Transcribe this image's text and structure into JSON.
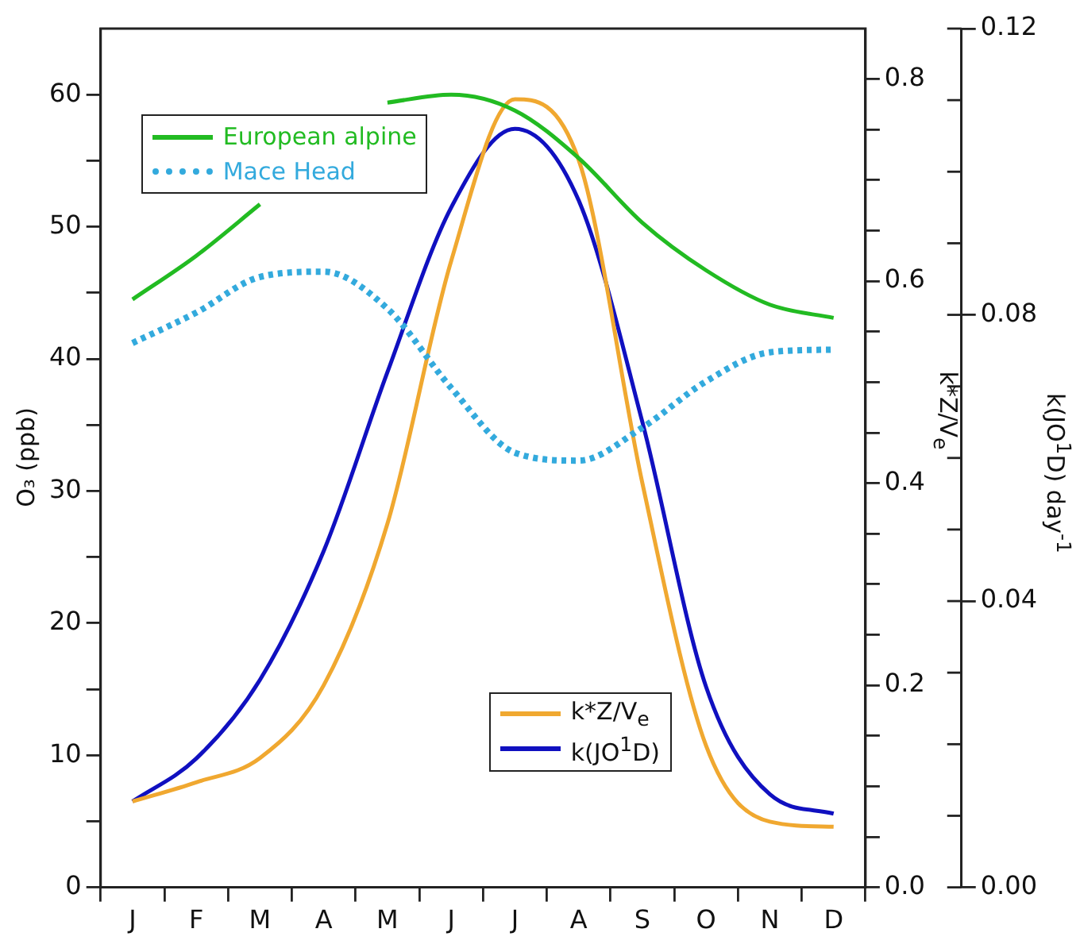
{
  "chart_data": {
    "type": "line",
    "ylabel": "O₃ (ppb)",
    "y2label": "k*Z/V$_{e}$",
    "y3label": "k(JO$^{1}$D) day$^{-1}$",
    "categories": [
      "J",
      "F",
      "M",
      "A",
      "M",
      "J",
      "J",
      "A",
      "S",
      "O",
      "N",
      "D"
    ],
    "ylim": [
      0,
      65
    ],
    "yticks": [
      0,
      {
        "value": 5,
        "label": null
      },
      10,
      {
        "value": 15,
        "label": null
      },
      20,
      {
        "value": 25,
        "label": null
      },
      30,
      {
        "value": 35,
        "label": null
      },
      40,
      {
        "value": 45,
        "label": null
      },
      50,
      {
        "value": 55,
        "label": null
      },
      60
    ],
    "y2lim": [
      0,
      0.85
    ],
    "y2ticks": [
      {
        "value": 0,
        "label": "0.0"
      },
      {
        "value": 0.05,
        "label": null
      },
      {
        "value": 0.1,
        "label": null
      },
      {
        "value": 0.15,
        "label": null
      },
      {
        "value": 0.2,
        "label": "0.2"
      },
      {
        "value": 0.25,
        "label": null
      },
      {
        "value": 0.3,
        "label": null
      },
      {
        "value": 0.35,
        "label": null
      },
      {
        "value": 0.4,
        "label": "0.4"
      },
      {
        "value": 0.45,
        "label": null
      },
      {
        "value": 0.5,
        "label": null
      },
      {
        "value": 0.55,
        "label": null
      },
      {
        "value": 0.6,
        "label": "0.6"
      },
      {
        "value": 0.65,
        "label": null
      },
      {
        "value": 0.7,
        "label": null
      },
      {
        "value": 0.75,
        "label": null
      },
      {
        "value": 0.8,
        "label": "0.8"
      }
    ],
    "y3lim": [
      0,
      0.12
    ],
    "y3ticks": [
      {
        "value": 0,
        "label": "0.00"
      },
      {
        "value": 0.04,
        "label": "0.04"
      },
      {
        "value": 0.08,
        "label": "0.08"
      },
      {
        "value": 0.12,
        "label": "0.12"
      }
    ],
    "legend": "top left",
    "marker": "none",
    "series": [
      {
        "name": "European alpine",
        "color": "#22bb22",
        "values": [
          44.5,
          47.8,
          51.7,
          null,
          59.4,
          60,
          58.8,
          55.2,
          50.3,
          46.7,
          44.1,
          43.1
        ]
      },
      {
        "name": "Mace Head",
        "color": "#33aadd",
        "line_style": "dotted",
        "values": [
          41.2,
          43.5,
          46.2,
          46.6,
          43.8,
          37.8,
          32.9,
          32.3,
          34.8,
          38.3,
          40.5,
          40.7
        ]
      },
      {
        "name": "k*Z/V$_{e}$",
        "color": "#f0a830",
        "axis": "y2",
        "values": [
          0.085,
          0.104,
          0.128,
          0.2,
          0.36,
          0.62,
          0.78,
          0.72,
          0.4,
          0.14,
          0.065,
          0.06
        ]
      },
      {
        "name": "k(JO$^{1}$D)",
        "color": "#1010c0",
        "axis": "y3",
        "values": [
          0.012,
          0.018,
          0.029,
          0.047,
          0.072,
          0.095,
          0.106,
          0.096,
          0.065,
          0.028,
          0.013,
          0.0103
        ]
      }
    ]
  }
}
